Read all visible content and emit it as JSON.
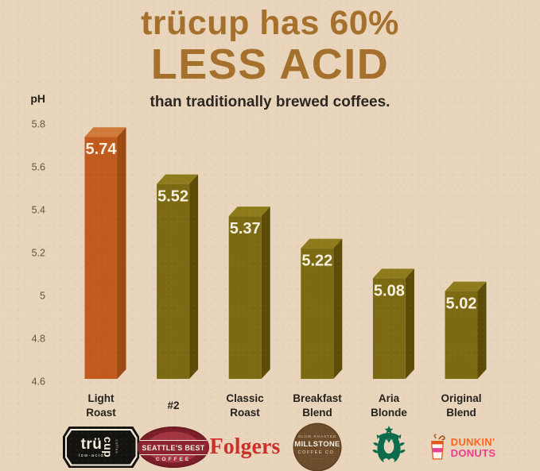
{
  "page": {
    "background_color": "#e8d5bb"
  },
  "header": {
    "title_line1": "trücup has 60%",
    "title_line2": "LESS ACID",
    "subtitle": "than traditionally brewed coffees.",
    "title_color": "#a5702b"
  },
  "chart_data": {
    "type": "bar",
    "title": "trücup has 60% LESS ACID",
    "subtitle": "than traditionally brewed coffees.",
    "ylabel": "pH",
    "ylim": [
      4.6,
      5.8
    ],
    "yticks": [
      "5.8",
      "5.6",
      "5.4",
      "5.2",
      "5",
      "4.8",
      "4.6"
    ],
    "grid": false,
    "legend": false,
    "categories": [
      "Light Roast",
      "#2",
      "Classic Roast",
      "Breakfast Blend",
      "Aria Blonde",
      "Original Blend"
    ],
    "brands": [
      "trücup low-acid coffee",
      "Seattle's Best Coffee",
      "Folgers",
      "Millstone Coffee Co.",
      "Starbucks",
      "Dunkin' Donuts"
    ],
    "values": [
      5.74,
      5.52,
      5.37,
      5.22,
      5.08,
      5.02
    ],
    "value_labels": [
      "5.74",
      "5.52",
      "5.37",
      "5.22",
      "5.08",
      "5.02"
    ],
    "highlight_index": 0,
    "colors": {
      "highlight": {
        "front": "#c05a1d",
        "side": "#9d4a13",
        "top": "#d07b3a"
      },
      "normal": {
        "front": "#7b6a11",
        "side": "#5c4c08",
        "top": "#8d7b1c"
      },
      "value_label": "#f7f0e0",
      "axis_text": "#4a4238",
      "ylabel_text": "#221e18"
    }
  },
  "columns": [
    {
      "label_line1": "Light",
      "label_line2": "Roast"
    },
    {
      "label_line1": "#2",
      "label_line2": ""
    },
    {
      "label_line1": "Classic",
      "label_line2": "Roast"
    },
    {
      "label_line1": "Breakfast",
      "label_line2": "Blend"
    },
    {
      "label_line1": "Aria",
      "label_line2": "Blonde"
    },
    {
      "label_line1": "Original",
      "label_line2": "Blend"
    }
  ],
  "logos": {
    "trucup": {
      "name_main": "trü",
      "name_vert": "cup",
      "tagline": "low-acid",
      "micro": "coffee"
    },
    "seattles_best": {
      "banner": "SEATTLE'S BEST",
      "word": "COFFEE"
    },
    "folgers": {
      "wordmark": "Folgers"
    },
    "millstone": {
      "arc_top": "SLOW ROASTED",
      "name": "MILLSTONE",
      "sub": "COFFEE CO."
    },
    "dunkin": {
      "line1": "DUNKIN'",
      "line2": "DONUTS"
    }
  }
}
